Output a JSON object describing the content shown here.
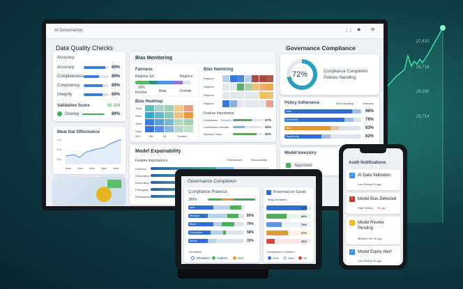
{
  "background_chart": {
    "labels": [
      "27,410",
      "26,718",
      "26,190",
      "25,714"
    ],
    "color": "#3fe0a0"
  },
  "monitor": {
    "app_title": "AI Governance",
    "page_title": "Data Quality Checks",
    "accuracy_card": {
      "title": "Accuracy",
      "rows": [
        {
          "label": "Accuracy",
          "value": "89%",
          "fill": 0.85
        },
        {
          "label": "Completeness",
          "value": "89%",
          "fill": 0.6
        },
        {
          "label": "Consistency",
          "value": "89%",
          "fill": 0.75
        },
        {
          "label": "Integrity",
          "value": "89%",
          "fill": 0.75
        }
      ],
      "validation_label": "Validation Score",
      "validation_value": "88 309",
      "overlay_label": "Overlay",
      "overlay_value": "89%"
    },
    "performance_card": {
      "title": "Meat hial Offormance",
      "x_ticks": [
        "2am",
        "2am",
        "3am",
        "2am",
        "4am"
      ],
      "y_ticks": [
        "1.0",
        "0.5",
        "0.0"
      ]
    },
    "bias_monitoring": {
      "title": "Bias Monitoring",
      "fairness": {
        "title": "Fairness",
        "left": "Regions Ge",
        "right": "Regions",
        "pct": "30%",
        "labels": [
          "Income",
          "Male",
          "Female"
        ]
      },
      "heatmap": {
        "title": "Bias Heatmap",
        "rows": [
          "Tools",
          "Sens",
          "Tools",
          "Sens"
        ],
        "footer": [
          "430",
          "Mix",
          "All",
          "Female"
        ]
      },
      "bias_hamitring": {
        "title": "Bias Hamitring",
        "rows": [
          "Regions",
          "Regions",
          "Regions",
          "Regions"
        ]
      },
      "importance": {
        "title": "Feature Importance",
        "rows": [
          {
            "label": "Confidence",
            "tag": "Planners",
            "value": "67%"
          },
          {
            "label": "Confidence intervals",
            "value": "93%"
          },
          {
            "label": "Decision Trace",
            "value": "62%"
          }
        ]
      }
    },
    "explainability": {
      "title": "Model Expainability",
      "subtitle": "Feature Importannce",
      "legend": [
        "Diversioned",
        "Reconnaisse"
      ],
      "rows": [
        "Fairness",
        "Decertancy",
        "Decertancy",
        "Pannigans",
        "Persistance"
      ]
    },
    "governance_compliance": {
      "title": "Governance Compliance",
      "donut_value": "72%",
      "donut_fraction": 0.72,
      "legend": [
        "Compliance Completion",
        "Policies Handling"
      ],
      "policy": {
        "title": "Policy Adherence",
        "header": [
          "84% Handling",
          "Sessions"
        ],
        "rows": [
          {
            "label": "Edits",
            "value": "98%",
            "fill": 0.88,
            "color": "#2f6fd0"
          },
          {
            "label": "Model Mult",
            "value": "78%",
            "fill": 0.78,
            "color": "#2f6fd0"
          },
          {
            "label": "Base",
            "value": "83%",
            "fill": 0.6,
            "color": "#e8962e"
          },
          {
            "label": "Engineering",
            "value": "62%",
            "fill": 0.48,
            "color": "#2f6fd0"
          }
        ]
      },
      "inventory": {
        "title": "Model Investory",
        "approved": "Approved"
      }
    }
  },
  "tablet": {
    "title": "Governance Completion",
    "left": {
      "title": "Compliance Praence",
      "top_pct": "380%",
      "rows": [
        {
          "label": "Next",
          "value": ""
        },
        {
          "label": "Structure",
          "value": "80%"
        },
        {
          "label": "Stock",
          "value": "79%"
        },
        {
          "label": "Checkpoint",
          "value": "58%"
        },
        {
          "label": "Stocks",
          "value": "33%"
        }
      ],
      "footer_title": "Correlation",
      "legend": [
        "Velsadacs",
        "Capists",
        "Sun"
      ]
    },
    "right": {
      "title": "Fovernancel Sssds",
      "filter": "Magy Arhitation",
      "rows": [
        {
          "value": "00 %",
          "color": "#2f6fd0",
          "fill": 0.9
        },
        {
          "value": "80%",
          "color": "#4caf5a",
          "fill": 0.45
        },
        {
          "value": "79%",
          "color": "#5b9ae0",
          "fill": 0.35
        },
        {
          "value": "57%",
          "color": "#e8962e",
          "fill": 0.48
        },
        {
          "value": "33%",
          "color": "#d04b3b",
          "fill": 0.18
        }
      ],
      "footer_title": "Compliance to Hendon",
      "legend": [
        "Sees",
        "Sees",
        "Str"
      ]
    }
  },
  "phone": {
    "title": "Audit Notifications",
    "items": [
      {
        "title": "AI Data Validation",
        "meta": "Low Sevety 10 ago",
        "color": "#3a8de0",
        "icon": "check-icon"
      },
      {
        "title": "Model Bias Detected",
        "meta": "High Severy",
        "meta_hl": "35 ago",
        "color": "#c0392b",
        "icon": "alert-icon"
      },
      {
        "title": "Model Review Pending",
        "meta": "Medium Ser 10 ago",
        "color": "#f0b429",
        "icon": "pencil-icon"
      },
      {
        "title": "Model Expiry Alert",
        "meta": "Low Severy 30 ago",
        "color": "#3a8de0",
        "icon": "check-icon"
      }
    ]
  }
}
